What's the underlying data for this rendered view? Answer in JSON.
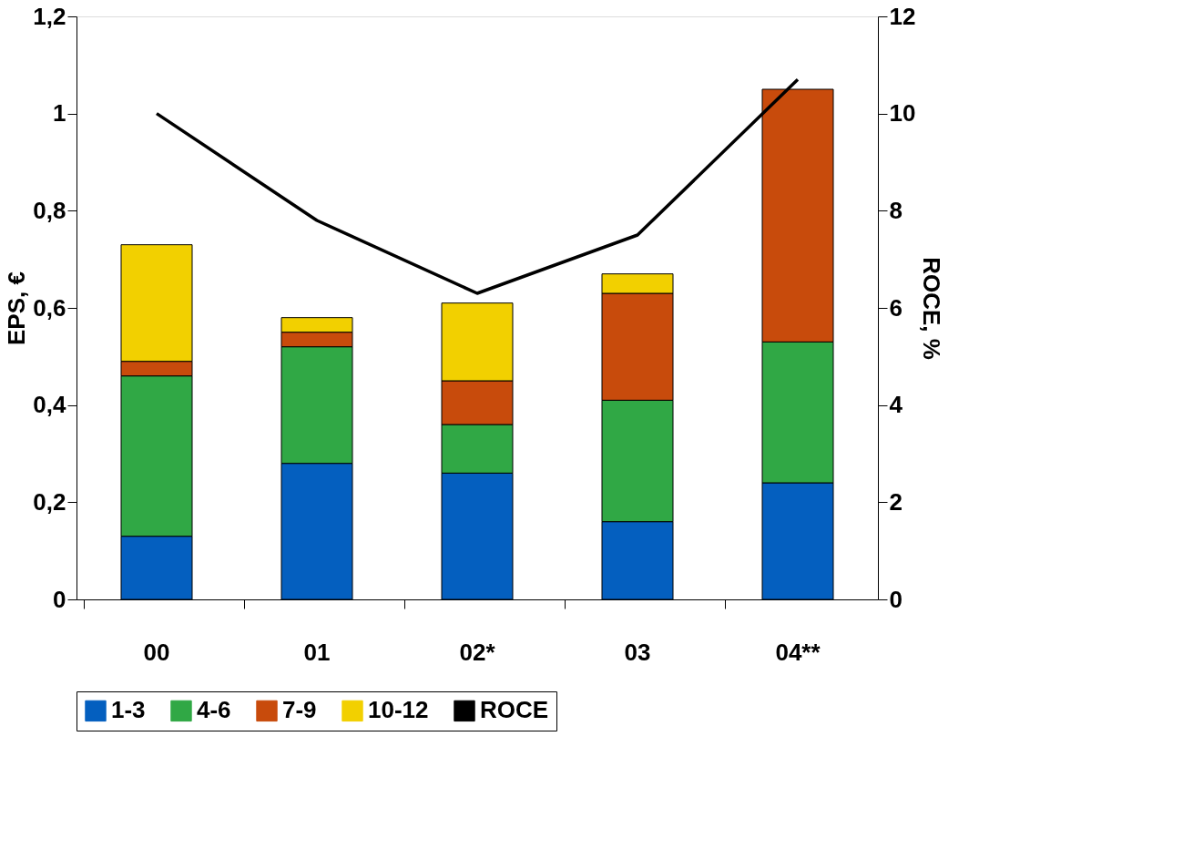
{
  "chart_data": {
    "type": "bar",
    "stacked": true,
    "ylabel": "EPS, €",
    "y2label": "ROCE, %",
    "categories": [
      "00",
      "01",
      "02*",
      "03",
      "04**"
    ],
    "series": [
      {
        "name": "1-3",
        "color": "#045fbf",
        "values": [
          0.13,
          0.28,
          0.26,
          0.16,
          0.24
        ]
      },
      {
        "name": "4-6",
        "color": "#30a845",
        "values": [
          0.33,
          0.24,
          0.1,
          0.25,
          0.29
        ]
      },
      {
        "name": "7-9",
        "color": "#c84b0c",
        "values": [
          0.03,
          0.03,
          0.09,
          0.22,
          0.52
        ]
      },
      {
        "name": "10-12",
        "color": "#f2d000",
        "values": [
          0.24,
          0.03,
          0.16,
          0.04,
          null
        ]
      },
      {
        "name": "ROCE",
        "type": "line",
        "axis": "y2",
        "color": "#000000",
        "values": [
          10.0,
          7.8,
          6.3,
          7.5,
          10.7
        ]
      }
    ],
    "ylim": [
      0,
      1.2
    ],
    "yticks": [
      0,
      {
        "value": 0.2,
        "label": "0,2"
      },
      {
        "value": 0.4,
        "label": "0,4"
      },
      {
        "value": 0.6,
        "label": "0,6"
      },
      {
        "value": 0.8,
        "label": "0,8"
      },
      1,
      {
        "value": 1.2,
        "label": "1,2"
      }
    ],
    "y2lim": [
      0,
      12
    ],
    "y2ticks": [
      0,
      2,
      4,
      6,
      8,
      10,
      12
    ],
    "grid": false,
    "legend": "bottom",
    "marker": "none",
    "line_style": "solid"
  }
}
